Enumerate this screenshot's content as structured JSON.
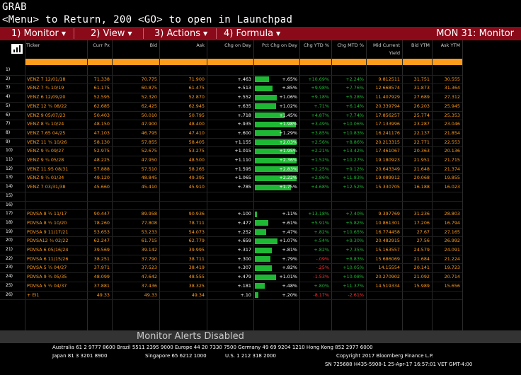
{
  "header": {
    "line1": "GRAB",
    "line2": "<Menu> to Return, 200 <GO> to open in Launchpad"
  },
  "menu": {
    "items": [
      {
        "label": "1) Monitor"
      },
      {
        "label": "2) View"
      },
      {
        "label": "3) Actions"
      },
      {
        "label": "4) Formula"
      }
    ],
    "monitor_title": "MON 31: Monitor"
  },
  "columns": [
    "Ticker",
    "Curr Px",
    "Bid",
    "Ask",
    "Chg on Day",
    "Pct Chg on Day",
    "Chg YTD %",
    "Chg MTD %",
    "Mid Current Yield",
    "Bid YTM",
    "Ask YTM"
  ],
  "colors": {
    "accent": "#ff9c1c",
    "menu": "#8b0a1a",
    "bar": "#1fb835",
    "pos": "#1fb835",
    "neg": "#ff3030",
    "ticker": "#ff9c1c"
  },
  "rows": [
    {
      "n": "1)",
      "ticker": "",
      "px": "",
      "bid": "",
      "ask": "",
      "chg": "",
      "pct": "",
      "bar": 0,
      "ytd": "",
      "mtd": "",
      "yield": "",
      "bytm": "",
      "aytm": ""
    },
    {
      "n": "2)",
      "ticker": "VENZ 7 12/01/18",
      "px": "71.338",
      "bid": "70.775",
      "ask": "71.900",
      "chg": "+.463",
      "pct": "+.65%",
      "bar": 0.32,
      "ytd": "+10.69%",
      "mtd": "+2.24%",
      "yield": "9.812511",
      "bytm": "31.751",
      "aytm": "30.555"
    },
    {
      "n": "3)",
      "ticker": "VENZ 7 ¾ 10/19",
      "px": "61.175",
      "bid": "60.875",
      "ask": "61.475",
      "chg": "+.513",
      "pct": "+.85%",
      "bar": 0.4,
      "ytd": "+9.98%",
      "mtd": "+7.76%",
      "yield": "12.668574",
      "bytm": "31.873",
      "aytm": "31.364"
    },
    {
      "n": "4)",
      "ticker": "VENZ 6 12/09/20",
      "px": "52.595",
      "bid": "52.320",
      "ask": "52.870",
      "chg": "+.552",
      "pct": "+1.06%",
      "bar": 0.5,
      "ytd": "+9.18%",
      "mtd": "+5.28%",
      "yield": "11.407929",
      "bytm": "27.689",
      "aytm": "27.312"
    },
    {
      "n": "5)",
      "ticker": "VENZ 12 ¾ 08/22",
      "px": "62.685",
      "bid": "62.425",
      "ask": "62.945",
      "chg": "+.635",
      "pct": "+1.02%",
      "bar": 0.48,
      "ytd": "+.71%",
      "mtd": "+6.14%",
      "yield": "20.339794",
      "bytm": "26.203",
      "aytm": "25.945"
    },
    {
      "n": "6)",
      "ticker": "VENZ 9 05/07/23",
      "px": "50.403",
      "bid": "50.010",
      "ask": "50.795",
      "chg": "+.718",
      "pct": "+1.45%",
      "bar": 0.68,
      "ytd": "+4.87%",
      "mtd": "+7.74%",
      "yield": "17.856257",
      "bytm": "25.774",
      "aytm": "25.353"
    },
    {
      "n": "7)",
      "ticker": "VENZ 8 ¼ 10/24",
      "px": "48.150",
      "bid": "47.900",
      "ask": "48.400",
      "chg": "+.935",
      "pct": "+1.98%",
      "bar": 0.93,
      "ytd": "+3.49%",
      "mtd": "+10.06%",
      "yield": "17.133996",
      "bytm": "23.287",
      "aytm": "23.046"
    },
    {
      "n": "8)",
      "ticker": "VENZ 7.65 04/25",
      "px": "47.103",
      "bid": "46.795",
      "ask": "47.410",
      "chg": "+.600",
      "pct": "+1.29%",
      "bar": 0.6,
      "ytd": "+3.85%",
      "mtd": "+10.83%",
      "yield": "16.241176",
      "bytm": "22.137",
      "aytm": "21.854"
    },
    {
      "n": "9)",
      "ticker": "VENZ 11 ¾ 10/26",
      "px": "58.130",
      "bid": "57.855",
      "ask": "58.405",
      "chg": "+1.155",
      "pct": "+2.03%",
      "bar": 0.95,
      "ytd": "+2.56%",
      "mtd": "+8.86%",
      "yield": "20.213315",
      "bytm": "22.771",
      "aytm": "22.553"
    },
    {
      "n": "10)",
      "ticker": "VENZ 9 ¼ 09/27",
      "px": "52.975",
      "bid": "52.675",
      "ask": "53.275",
      "chg": "+1.015",
      "pct": "+1.95%",
      "bar": 0.92,
      "ytd": "+2.21%",
      "mtd": "+13.42%",
      "yield": "17.461067",
      "bytm": "20.363",
      "aytm": "20.136"
    },
    {
      "n": "11)",
      "ticker": "VENZ 9 ¼ 05/28",
      "px": "48.225",
      "bid": "47.950",
      "ask": "48.500",
      "chg": "+1.110",
      "pct": "+2.36%",
      "bar": 0.95,
      "ytd": "+1.52%",
      "mtd": "+10.27%",
      "yield": "19.180923",
      "bytm": "21.951",
      "aytm": "21.715"
    },
    {
      "n": "12)",
      "ticker": "VENZ 11.95 08/31",
      "px": "57.888",
      "bid": "57.510",
      "ask": "58.265",
      "chg": "+1.595",
      "pct": "+2.83%",
      "bar": 0.98,
      "ytd": "+2.25%",
      "mtd": "+9.12%",
      "yield": "20.643349",
      "bytm": "21.648",
      "aytm": "21.374"
    },
    {
      "n": "13)",
      "ticker": "VENZ 9 ¼ 01/34",
      "px": "49.120",
      "bid": "48.845",
      "ask": "49.395",
      "chg": "+1.065",
      "pct": "+2.22%",
      "bar": 0.95,
      "ytd": "+2.86%",
      "mtd": "+11.83%",
      "yield": "19.089912",
      "bytm": "20.068",
      "aytm": "19.855"
    },
    {
      "n": "14)",
      "ticker": "VENZ 7 03/31/38",
      "px": "45.660",
      "bid": "45.410",
      "ask": "45.910",
      "chg": "+.785",
      "pct": "+1.75%",
      "bar": 0.82,
      "ytd": "+4.68%",
      "mtd": "+12.52%",
      "yield": "15.330705",
      "bytm": "16.188",
      "aytm": "16.023"
    },
    {
      "n": "15)",
      "ticker": "",
      "px": "",
      "bid": "",
      "ask": "",
      "chg": "",
      "pct": "",
      "bar": 0,
      "ytd": "",
      "mtd": "",
      "yield": "",
      "bytm": "",
      "aytm": ""
    },
    {
      "n": "16)",
      "ticker": "",
      "px": "",
      "bid": "",
      "ask": "",
      "chg": "",
      "pct": "",
      "bar": 0,
      "ytd": "",
      "mtd": "",
      "yield": "",
      "bytm": "",
      "aytm": ""
    },
    {
      "n": "17)",
      "ticker": "PDVSA 8 ½ 11/17",
      "px": "90.447",
      "bid": "89.958",
      "ask": "90.936",
      "chg": "+.100",
      "pct": "+.11%",
      "bar": 0.05,
      "ytd": "+13.18%",
      "mtd": "+7.40%",
      "yield": "9.397769",
      "bytm": "31.236",
      "aytm": "28.803"
    },
    {
      "n": "18)",
      "ticker": "PDVSA 8 ½ 10/20",
      "px": "78.260",
      "bid": "77.808",
      "ask": "78.711",
      "chg": "+.477",
      "pct": "+.61%",
      "bar": 0.3,
      "ytd": "+5.91%",
      "mtd": "+5.82%",
      "yield": "10.861301",
      "bytm": "17.206",
      "aytm": "16.794"
    },
    {
      "n": "19)",
      "ticker": "PDVSA 9 11/17/21",
      "px": "53.653",
      "bid": "53.233",
      "ask": "54.073",
      "chg": "+.252",
      "pct": "+.47%",
      "bar": 0.25,
      "ytd": "+.82%",
      "mtd": "+10.65%",
      "yield": "16.774458",
      "bytm": "27.67",
      "aytm": "27.165"
    },
    {
      "n": "20)",
      "ticker": "PDVSA12 ¾ 02/22",
      "px": "62.247",
      "bid": "61.715",
      "ask": "62.779",
      "chg": "+.659",
      "pct": "+1.07%",
      "bar": 0.52,
      "ytd": "+.54%",
      "mtd": "+9.30%",
      "yield": "20.482915",
      "bytm": "27.56",
      "aytm": "26.992"
    },
    {
      "n": "21)",
      "ticker": "PDVSA 6 05/16/24",
      "px": "39.569",
      "bid": "39.142",
      "ask": "39.995",
      "chg": "+.317",
      "pct": "+.81%",
      "bar": 0.38,
      "ytd": "+.82%",
      "mtd": "+7.35%",
      "yield": "15.163557",
      "bytm": "24.579",
      "aytm": "24.091"
    },
    {
      "n": "22)",
      "ticker": "PDVSA 6 11/15/26",
      "px": "38.251",
      "bid": "37.790",
      "ask": "38.711",
      "chg": "+.300",
      "pct": "+.79%",
      "bar": 0.36,
      "ytd": "-.09%",
      "mtd": "+8.83%",
      "yield": "15.686069",
      "bytm": "21.684",
      "aytm": "21.224"
    },
    {
      "n": "23)",
      "ticker": "PDVSA 5 ¼ 04/27",
      "px": "37.971",
      "bid": "37.523",
      "ask": "38.419",
      "chg": "+.307",
      "pct": "+.82%",
      "bar": 0.38,
      "ytd": "-.25%",
      "mtd": "+10.05%",
      "yield": "14.15554",
      "bytm": "20.141",
      "aytm": "19.723"
    },
    {
      "n": "24)",
      "ticker": "PDVSA 9 ¾ 05/35",
      "px": "48.099",
      "bid": "47.642",
      "ask": "48.555",
      "chg": "+.479",
      "pct": "+1.01%",
      "bar": 0.48,
      "ytd": "-1.53%",
      "mtd": "+10.08%",
      "yield": "20.270902",
      "bytm": "21.092",
      "aytm": "20.714"
    },
    {
      "n": "25)",
      "ticker": "PDVSA 5 ½ 04/37",
      "px": "37.881",
      "bid": "37.436",
      "ask": "38.325",
      "chg": "+.181",
      "pct": "+.48%",
      "bar": 0.22,
      "ytd": "+.80%",
      "mtd": "+11.37%",
      "yield": "14.519334",
      "bytm": "15.989",
      "aytm": "15.656"
    },
    {
      "n": "26)",
      "ticker": "+ EI1",
      "px": "49.33",
      "bid": "49.33",
      "ask": "49.34",
      "chg": "+.10",
      "pct": "+.20%",
      "bar": 0.08,
      "ytd": "-8.17%",
      "mtd": "-2.61%",
      "yield": "",
      "bytm": "",
      "aytm": ""
    }
  ],
  "alerts": "Monitor Alerts Disabled",
  "footer": {
    "line1": "Australia 61 2 9777 8600 Brazil 5511 2395 9000 Europe 44 20 7330 7500 Germany 49 69 9204 1210 Hong Kong 852 2977 6000",
    "line2a": "Japan 81 3 3201 8900",
    "line2b": "Singapore 65 6212 1000",
    "line2c": "U.S. 1 212 318 2000",
    "line2d": "Copyright 2017 Bloomberg Finance L.P.",
    "line3": "SN 725688 H435-5908-1 25-Apr-17 16:57:01 VET  GMT-4:00"
  }
}
